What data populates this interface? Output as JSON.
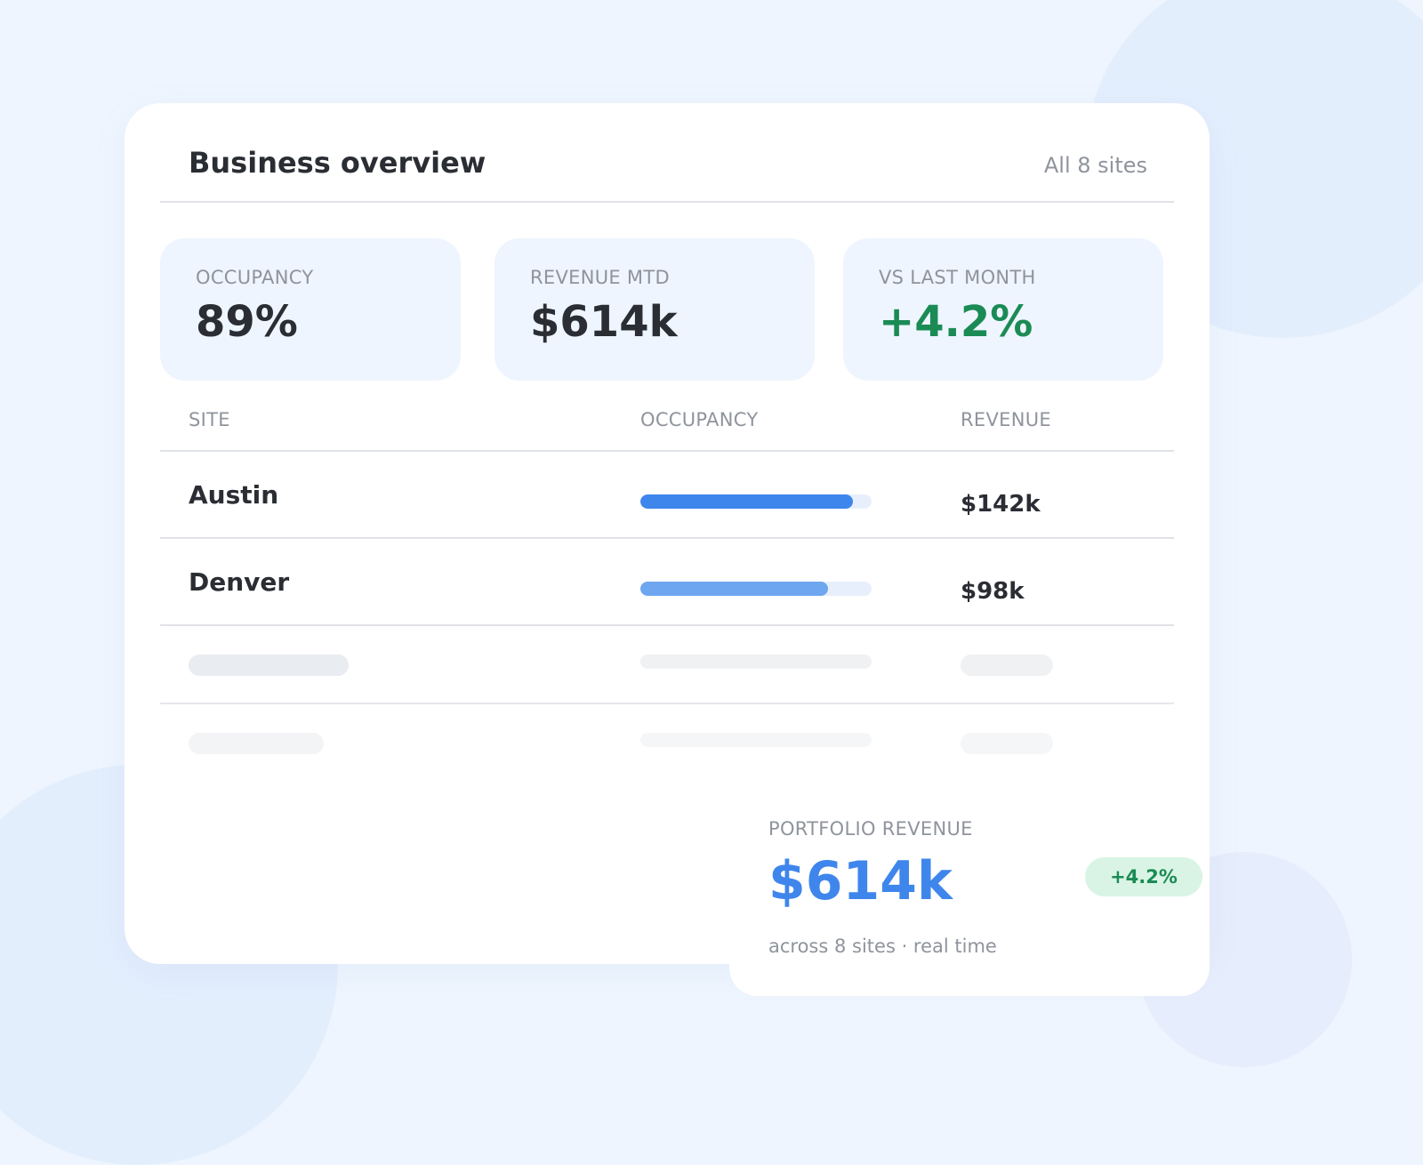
{
  "header": {
    "title": "Business overview",
    "scope": "All 8 sites"
  },
  "kpis": [
    {
      "label": "OCCUPANCY",
      "value": "89%"
    },
    {
      "label": "REVENUE MTD",
      "value": "$614k"
    },
    {
      "label": "VS LAST MONTH",
      "value": "+4.2%"
    }
  ],
  "table": {
    "columns": [
      "SITE",
      "OCCUPANCY",
      "REVENUE"
    ],
    "rows": [
      {
        "site": "Austin",
        "occupancy_fill": 0.92,
        "revenue": "$142k"
      },
      {
        "site": "Denver",
        "occupancy_fill": 0.81,
        "revenue": "$98k"
      }
    ],
    "loading_rows": 2
  },
  "summary": {
    "label": "PORTFOLIO REVENUE",
    "value": "$614k",
    "badge": "+4.2%",
    "subtitle": "across 8 sites · real time"
  },
  "colors": {
    "accent": "#3f86ec",
    "bar_primary": "#3f86ec",
    "bar_secondary": "#6ea6ef",
    "positive": "#1b8b55",
    "positive_bg": "#d9f4e4",
    "background": "#eef5fe"
  }
}
